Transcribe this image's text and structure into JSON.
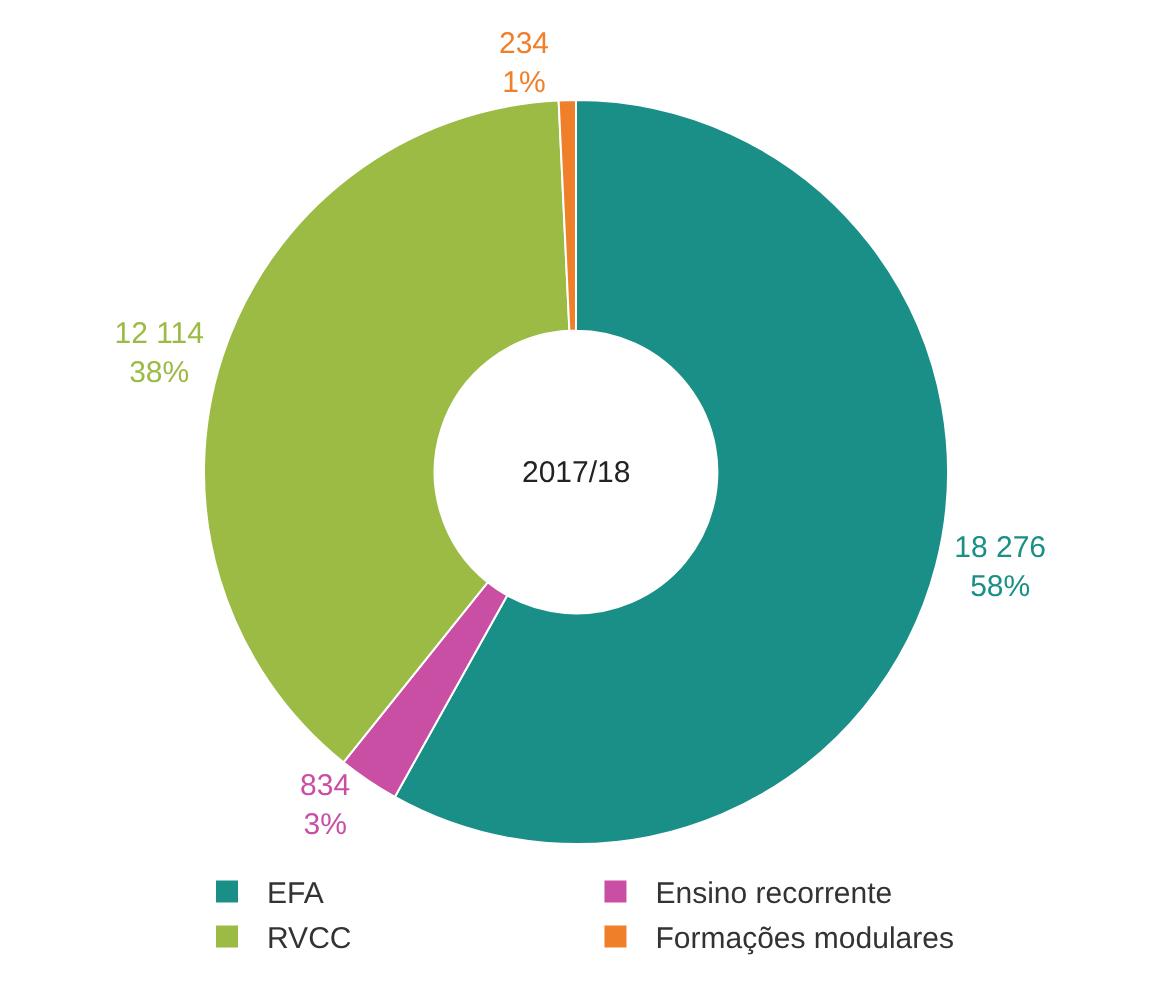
{
  "chart_data": {
    "type": "donut",
    "categories": [
      "EFA",
      "Ensino recorrente",
      "RVCC",
      "Formações modulares"
    ],
    "values": [
      18276,
      834,
      12114,
      234
    ],
    "colors": [
      "#1a8f87",
      "#c94fa5",
      "#9bbb45",
      "#f07f2a"
    ],
    "value_labels": [
      "18 276\n58%",
      "834\n3%",
      "12 114\n38%",
      "234\n1%"
    ],
    "annotations": [
      "2017/18"
    ],
    "legend": "bottom"
  }
}
